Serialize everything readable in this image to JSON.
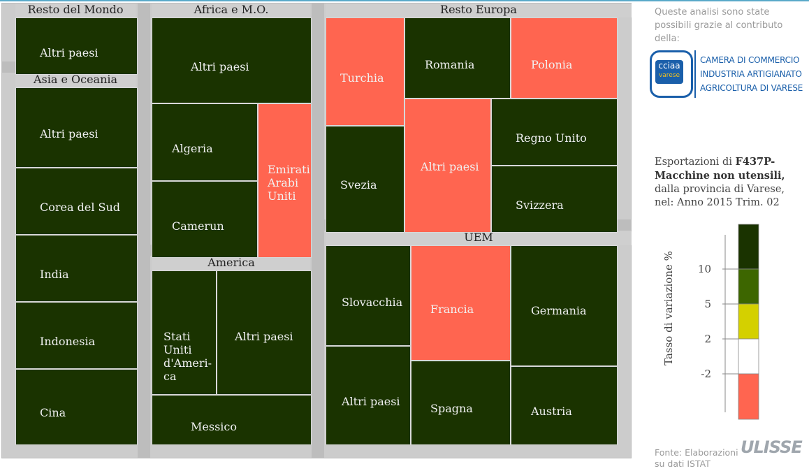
{
  "chart_data": {
    "type": "treemap",
    "title": "",
    "groups": [
      {
        "name": "Resto del Mondo",
        "items": [
          {
            "label": "Altri paesi",
            "color": "#1a3300"
          }
        ]
      },
      {
        "name": "Asia e Oceania",
        "items": [
          {
            "label": "Altri paesi",
            "color": "#1a3300"
          },
          {
            "label": "Corea del Sud",
            "color": "#1a3300"
          },
          {
            "label": "India",
            "color": "#1a3300"
          },
          {
            "label": "Indonesia",
            "color": "#1a3300"
          },
          {
            "label": "Cina",
            "color": "#1a3300"
          }
        ]
      },
      {
        "name": "Africa e M.O.",
        "items": [
          {
            "label": "Altri paesi",
            "color": "#1a3300"
          },
          {
            "label": "Algeria",
            "color": "#1a3300"
          },
          {
            "label": "Camerun",
            "color": "#1a3300"
          },
          {
            "label": "Emirati\nArabi\nUniti",
            "color": "#ff6550"
          }
        ]
      },
      {
        "name": "America",
        "items": [
          {
            "label": "Stati\nUniti\nd'Ameri-\nca",
            "color": "#1a3300"
          },
          {
            "label": "Altri paesi",
            "color": "#1a3300"
          },
          {
            "label": "Messico",
            "color": "#1a3300"
          }
        ]
      },
      {
        "name": "Resto Europa",
        "items": [
          {
            "label": "Turchia",
            "color": "#ff6550"
          },
          {
            "label": "Romania",
            "color": "#1a3300"
          },
          {
            "label": "Polonia",
            "color": "#ff6550"
          },
          {
            "label": "Svezia",
            "color": "#1a3300"
          },
          {
            "label": "Altri paesi",
            "color": "#ff6550"
          },
          {
            "label": "Regno Unito",
            "color": "#1a3300"
          },
          {
            "label": "Svizzera",
            "color": "#1a3300"
          }
        ]
      },
      {
        "name": "UEM",
        "items": [
          {
            "label": "Slovacchia",
            "color": "#1a3300"
          },
          {
            "label": "Francia",
            "color": "#ff6550"
          },
          {
            "label": "Germania",
            "color": "#1a3300"
          },
          {
            "label": "Altri paesi",
            "color": "#1a3300"
          },
          {
            "label": "Spagna",
            "color": "#1a3300"
          },
          {
            "label": "Austria",
            "color": "#1a3300"
          }
        ]
      }
    ],
    "legend": {
      "title": "Tasso di variazione %",
      "ticks": [
        "10",
        "5",
        "2",
        "-2"
      ],
      "colors": [
        "#1a3300",
        "#3d6600",
        "#d4d000",
        "#ffffff",
        "#ff6550"
      ]
    }
  },
  "sidebar": {
    "credit": "Queste analisi sono state possibili grazie al contributo della:",
    "logo": {
      "line1": "CAMERA DI COMMERCIO",
      "line2": "INDUSTRIA ARTIGIANATO",
      "line3": "AGRICOLTURA DI VARESE",
      "mark_top": "cciaa",
      "mark_bottom": "varese"
    },
    "desc_pre": "Esportazioni di ",
    "desc_bold": "F437P-Macchine non utensili,",
    "desc_line2": "dalla provincia di Varese,",
    "desc_line3": "nel: Anno 2015 Trim. 02",
    "source": "Fonte: Elaborazioni su dati ISTAT",
    "brand": "ULISSE"
  }
}
